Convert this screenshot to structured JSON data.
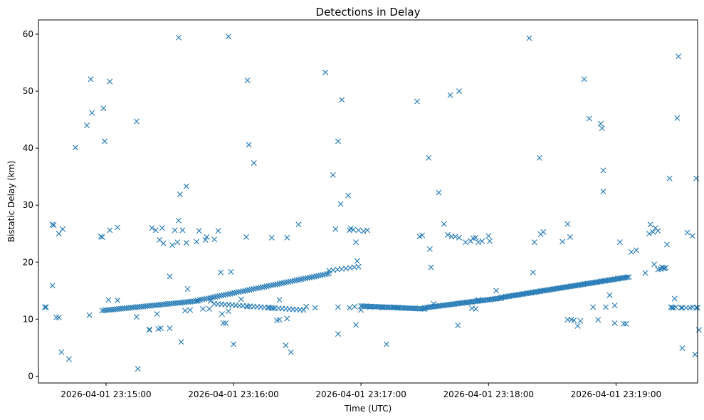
{
  "chart_data": {
    "type": "scatter",
    "title": "Detections in Delay",
    "xlabel": "Time (UTC)",
    "ylabel": "Bistatic Delay (km)",
    "marker": "x",
    "color": "#1f77b4",
    "xlim": [
      -0.53,
      4.64
    ],
    "ylim": [
      -1.2,
      62.5
    ],
    "x_unit": "minutes after 2026-04-01 23:15:00",
    "xticks": [
      {
        "value": 0,
        "label": "2026-04-01 23:15:00"
      },
      {
        "value": 1,
        "label": "2026-04-01 23:16:00"
      },
      {
        "value": 2,
        "label": "2026-04-01 23:17:00"
      },
      {
        "value": 3,
        "label": "2026-04-01 23:18:00"
      },
      {
        "value": 4,
        "label": "2026-04-01 23:19:00"
      }
    ],
    "yticks": [
      {
        "value": 0,
        "label": "0"
      },
      {
        "value": 10,
        "label": "10"
      },
      {
        "value": 20,
        "label": "20"
      },
      {
        "value": 30,
        "label": "30"
      },
      {
        "value": 40,
        "label": "40"
      },
      {
        "value": 50,
        "label": "50"
      },
      {
        "value": 60,
        "label": "60"
      }
    ],
    "points": [
      [
        -0.48,
        12.1
      ],
      [
        -0.47,
        12.1
      ],
      [
        -0.42,
        26.6
      ],
      [
        -0.41,
        26.5
      ],
      [
        -0.42,
        15.9
      ],
      [
        -0.39,
        10.3
      ],
      [
        -0.37,
        10.3
      ],
      [
        -0.37,
        25.0
      ],
      [
        -0.34,
        25.8
      ],
      [
        -0.35,
        4.2
      ],
      [
        -0.29,
        3.0
      ],
      [
        -0.24,
        40.1
      ],
      [
        -0.15,
        44.0
      ],
      [
        -0.12,
        52.1
      ],
      [
        -0.11,
        46.2
      ],
      [
        -0.13,
        10.7
      ],
      [
        -0.04,
        24.5
      ],
      [
        -0.03,
        24.4
      ],
      [
        -0.02,
        47.0
      ],
      [
        -0.01,
        41.2
      ],
      [
        0.03,
        51.7
      ],
      [
        0.03,
        25.6
      ],
      [
        0.02,
        13.4
      ],
      [
        0.09,
        26.1
      ],
      [
        0.09,
        13.3
      ],
      [
        0.24,
        44.7
      ],
      [
        0.24,
        10.4
      ],
      [
        0.25,
        1.3
      ],
      [
        0.34,
        8.1
      ],
      [
        0.36,
        26.0
      ],
      [
        0.39,
        25.6
      ],
      [
        0.34,
        8.2
      ],
      [
        0.41,
        8.3
      ],
      [
        0.43,
        8.4
      ],
      [
        0.4,
        10.9
      ],
      [
        0.42,
        23.9
      ],
      [
        0.44,
        26.0
      ],
      [
        0.45,
        23.3
      ],
      [
        0.5,
        17.5
      ],
      [
        0.5,
        8.4
      ],
      [
        0.52,
        23.0
      ],
      [
        0.54,
        25.6
      ],
      [
        0.56,
        23.5
      ],
      [
        0.57,
        27.3
      ],
      [
        0.58,
        31.9
      ],
      [
        0.59,
        6.0
      ],
      [
        0.6,
        25.6
      ],
      [
        0.62,
        11.5
      ],
      [
        0.63,
        33.3
      ],
      [
        0.63,
        23.4
      ],
      [
        0.64,
        15.3
      ],
      [
        0.66,
        11.6
      ],
      [
        0.71,
        23.6
      ],
      [
        0.73,
        25.5
      ],
      [
        0.76,
        11.8
      ],
      [
        0.78,
        23.9
      ],
      [
        0.79,
        24.4
      ],
      [
        0.81,
        11.8
      ],
      [
        0.82,
        13.2
      ],
      [
        0.85,
        24.0
      ],
      [
        0.88,
        25.5
      ],
      [
        0.9,
        18.2
      ],
      [
        0.91,
        10.9
      ],
      [
        0.92,
        9.3
      ],
      [
        0.94,
        9.3
      ],
      [
        0.96,
        11.4
      ],
      [
        0.57,
        59.4
      ],
      [
        0.96,
        59.6
      ],
      [
        0.98,
        18.3
      ],
      [
        1.0,
        5.6
      ],
      [
        1.11,
        12.2
      ],
      [
        1.1,
        24.4
      ],
      [
        1.06,
        13.5
      ],
      [
        1.28,
        12.0
      ],
      [
        1.3,
        24.3
      ],
      [
        1.31,
        11.9
      ],
      [
        1.34,
        9.8
      ],
      [
        1.36,
        9.9
      ],
      [
        1.36,
        13.4
      ],
      [
        1.41,
        5.4
      ],
      [
        1.42,
        10.1
      ],
      [
        1.45,
        4.2
      ],
      [
        1.42,
        24.3
      ],
      [
        1.51,
        26.6
      ],
      [
        1.57,
        12.2
      ],
      [
        1.64,
        12.0
      ],
      [
        1.11,
        51.9
      ],
      [
        1.12,
        40.6
      ],
      [
        1.16,
        37.4
      ],
      [
        1.72,
        53.3
      ],
      [
        1.78,
        35.3
      ],
      [
        1.82,
        41.2
      ],
      [
        1.85,
        48.5
      ],
      [
        1.84,
        30.2
      ],
      [
        1.9,
        31.7
      ],
      [
        1.82,
        7.4
      ],
      [
        1.96,
        9.0
      ],
      [
        2.2,
        5.6
      ],
      [
        1.8,
        25.8
      ],
      [
        1.82,
        12.1
      ],
      [
        1.91,
        25.6
      ],
      [
        1.92,
        25.9
      ],
      [
        1.94,
        25.7
      ],
      [
        1.96,
        23.5
      ],
      [
        1.98,
        25.6
      ],
      [
        1.97,
        20.2
      ],
      [
        2.0,
        11.6
      ],
      [
        2.02,
        25.4
      ],
      [
        2.05,
        25.6
      ],
      [
        2.07,
        12.1
      ],
      [
        1.91,
        12.0
      ],
      [
        1.95,
        12.2
      ],
      [
        2.17,
        12.0
      ],
      [
        2.26,
        12.1
      ],
      [
        2.29,
        12.0
      ],
      [
        2.44,
        48.2
      ],
      [
        2.46,
        24.5
      ],
      [
        2.48,
        24.7
      ],
      [
        2.53,
        38.3
      ],
      [
        2.54,
        22.3
      ],
      [
        2.55,
        19.1
      ],
      [
        2.57,
        12.7
      ],
      [
        2.61,
        32.2
      ],
      [
        2.65,
        26.7
      ],
      [
        2.68,
        24.8
      ],
      [
        2.71,
        24.5
      ],
      [
        2.74,
        24.5
      ],
      [
        2.77,
        24.3
      ],
      [
        2.7,
        49.3
      ],
      [
        2.77,
        50.0
      ],
      [
        2.76,
        8.9
      ],
      [
        2.82,
        23.5
      ],
      [
        2.86,
        23.7
      ],
      [
        2.88,
        24.2
      ],
      [
        2.9,
        24.3
      ],
      [
        2.92,
        23.5
      ],
      [
        2.95,
        23.7
      ],
      [
        3.0,
        24.6
      ],
      [
        3.01,
        23.7
      ],
      [
        2.87,
        11.9
      ],
      [
        2.9,
        11.8
      ],
      [
        3.35,
        18.2
      ],
      [
        3.36,
        23.5
      ],
      [
        3.41,
        24.9
      ],
      [
        3.43,
        25.3
      ],
      [
        2.92,
        13.4
      ],
      [
        3.06,
        15.0
      ],
      [
        3.32,
        59.3
      ],
      [
        3.4,
        38.3
      ],
      [
        3.58,
        23.6
      ],
      [
        3.62,
        26.7
      ],
      [
        3.64,
        24.4
      ],
      [
        3.62,
        9.9
      ],
      [
        3.65,
        9.9
      ],
      [
        3.67,
        9.8
      ],
      [
        3.7,
        8.8
      ],
      [
        3.72,
        9.7
      ],
      [
        3.75,
        52.1
      ],
      [
        3.79,
        45.2
      ],
      [
        3.82,
        12.1
      ],
      [
        3.86,
        9.9
      ],
      [
        3.88,
        44.3
      ],
      [
        3.89,
        43.5
      ],
      [
        3.9,
        36.1
      ],
      [
        3.9,
        32.4
      ],
      [
        3.92,
        12.1
      ],
      [
        3.95,
        14.2
      ],
      [
        3.99,
        12.4
      ],
      [
        3.99,
        9.3
      ],
      [
        4.03,
        23.5
      ],
      [
        4.06,
        9.2
      ],
      [
        4.08,
        9.2
      ],
      [
        4.12,
        21.8
      ],
      [
        4.16,
        22.1
      ],
      [
        4.23,
        18.1
      ],
      [
        4.27,
        26.6
      ],
      [
        4.29,
        25.3
      ],
      [
        4.3,
        19.6
      ],
      [
        4.33,
        25.5
      ],
      [
        4.35,
        18.8
      ],
      [
        4.37,
        19.0
      ],
      [
        4.38,
        18.9
      ],
      [
        4.4,
        23.1
      ],
      [
        4.42,
        34.7
      ],
      [
        4.43,
        12.1
      ],
      [
        4.45,
        12.0
      ],
      [
        4.46,
        13.6
      ],
      [
        4.48,
        45.3
      ],
      [
        4.49,
        56.1
      ],
      [
        4.51,
        12.0
      ],
      [
        4.52,
        4.9
      ],
      [
        4.56,
        25.2
      ],
      [
        4.58,
        12.0
      ],
      [
        4.6,
        24.6
      ],
      [
        4.62,
        3.8
      ],
      [
        4.63,
        34.7
      ],
      [
        4.63,
        12.0
      ],
      [
        4.65,
        8.1
      ],
      [
        4.33,
        18.7
      ],
      [
        4.36,
        19.1
      ],
      [
        4.39,
        19.0
      ],
      [
        4.44,
        12.0
      ],
      [
        4.47,
        12.1
      ],
      [
        4.52,
        12.0
      ],
      [
        4.55,
        12.0
      ],
      [
        4.6,
        12.1
      ],
      [
        4.64,
        12.0
      ],
      [
        4.26,
        25.0
      ],
      [
        4.31,
        26.0
      ]
    ],
    "track_segments": [
      {
        "x_start": -0.03,
        "x_end": 0.72,
        "y_start": 11.5,
        "y_end": 13.2,
        "count": 52
      },
      {
        "x_start": 0.72,
        "x_end": 1.75,
        "y_start": 13.3,
        "y_end": 18.0,
        "count": 62
      },
      {
        "x_start": 1.75,
        "x_end": 1.98,
        "y_start": 18.5,
        "y_end": 19.2,
        "count": 8
      },
      {
        "x_start": 2.0,
        "x_end": 2.5,
        "y_start": 12.3,
        "y_end": 11.8,
        "count": 40
      },
      {
        "x_start": 2.5,
        "x_end": 3.1,
        "y_start": 12.0,
        "y_end": 13.7,
        "count": 48
      },
      {
        "x_start": 3.1,
        "x_end": 4.1,
        "y_start": 13.8,
        "y_end": 17.4,
        "count": 82
      },
      {
        "x_start": 0.85,
        "x_end": 1.55,
        "y_start": 12.7,
        "y_end": 11.6,
        "count": 26
      }
    ]
  }
}
